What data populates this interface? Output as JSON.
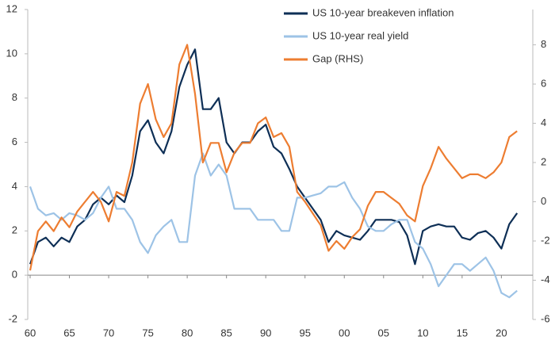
{
  "chart_data": {
    "type": "line",
    "x": [
      1960,
      1961,
      1962,
      1963,
      1964,
      1965,
      1966,
      1967,
      1968,
      1969,
      1970,
      1971,
      1972,
      1973,
      1974,
      1975,
      1976,
      1977,
      1978,
      1979,
      1980,
      1981,
      1982,
      1983,
      1984,
      1985,
      1986,
      1987,
      1988,
      1989,
      1990,
      1991,
      1992,
      1993,
      1994,
      1995,
      1996,
      1997,
      1998,
      1999,
      2000,
      2001,
      2002,
      2003,
      2004,
      2005,
      2006,
      2007,
      2008,
      2009,
      2010,
      2011,
      2012,
      2013,
      2014,
      2015,
      2016,
      2017,
      2018,
      2019,
      2020,
      2021,
      2022
    ],
    "series": [
      {
        "name": "US 10-year breakeven inflation",
        "color": "#0e2f56",
        "values": [
          0.5,
          1.5,
          1.7,
          1.3,
          1.7,
          1.5,
          2.2,
          2.5,
          3.2,
          3.5,
          3.2,
          3.6,
          3.3,
          4.5,
          6.5,
          7.0,
          6.0,
          5.5,
          6.5,
          8.5,
          9.5,
          10.2,
          7.5,
          7.5,
          8.0,
          6.0,
          5.5,
          6.0,
          6.0,
          6.5,
          6.8,
          5.8,
          5.5,
          4.8,
          4.0,
          3.5,
          3.0,
          2.5,
          1.5,
          2.0,
          1.8,
          1.7,
          1.6,
          2.0,
          2.5,
          2.5,
          2.5,
          2.4,
          1.8,
          0.5,
          2.0,
          2.2,
          2.3,
          2.2,
          2.2,
          1.7,
          1.6,
          1.9,
          2.0,
          1.7,
          1.2,
          2.3,
          2.8
        ]
      },
      {
        "name": "US 10-year real yield",
        "color": "#9dc3e6",
        "values": [
          4.0,
          3.0,
          2.7,
          2.8,
          2.5,
          2.8,
          2.7,
          2.5,
          2.8,
          3.5,
          4.0,
          3.0,
          3.0,
          2.5,
          1.5,
          1.0,
          1.8,
          2.2,
          2.5,
          1.5,
          1.5,
          4.5,
          5.5,
          4.5,
          5.0,
          4.5,
          3.0,
          3.0,
          3.0,
          2.5,
          2.5,
          2.5,
          2.0,
          2.0,
          3.5,
          3.5,
          3.6,
          3.7,
          4.0,
          4.0,
          4.2,
          3.5,
          3.0,
          2.2,
          2.0,
          2.0,
          2.3,
          2.5,
          2.5,
          1.5,
          1.2,
          0.5,
          -0.5,
          0.0,
          0.5,
          0.5,
          0.2,
          0.5,
          0.8,
          0.2,
          -0.8,
          -1.0,
          -0.7
        ]
      },
      {
        "name": "Gap (RHS)",
        "color": "#ed7d31",
        "axis": "y2",
        "values": [
          -3.5,
          -1.5,
          -1.0,
          -1.5,
          -0.8,
          -1.3,
          -0.5,
          0.0,
          0.5,
          0.0,
          -1.0,
          0.5,
          0.3,
          2.0,
          5.0,
          6.0,
          4.2,
          3.3,
          4.0,
          7.0,
          8.0,
          5.5,
          2.0,
          3.0,
          3.0,
          1.5,
          2.5,
          3.0,
          3.0,
          4.0,
          4.3,
          3.3,
          3.5,
          2.8,
          0.5,
          0.0,
          -0.6,
          -1.2,
          -2.5,
          -2.0,
          -2.4,
          -1.8,
          -1.4,
          -0.2,
          0.5,
          0.5,
          0.2,
          -0.1,
          -0.7,
          -1.0,
          0.8,
          1.7,
          2.8,
          2.2,
          1.7,
          1.2,
          1.4,
          1.4,
          1.2,
          1.5,
          2.0,
          3.3,
          3.6
        ]
      }
    ],
    "xlim": [
      1960,
      2024
    ],
    "xticks": [
      {
        "value": 1960,
        "label": "60"
      },
      {
        "value": 1965,
        "label": "65"
      },
      {
        "value": 1970,
        "label": "70"
      },
      {
        "value": 1975,
        "label": "75"
      },
      {
        "value": 1980,
        "label": "80"
      },
      {
        "value": 1985,
        "label": "85"
      },
      {
        "value": 1990,
        "label": "90"
      },
      {
        "value": 1995,
        "label": "95"
      },
      {
        "value": 2000,
        "label": "00"
      },
      {
        "value": 2005,
        "label": "05"
      },
      {
        "value": 2010,
        "label": "10"
      },
      {
        "value": 2015,
        "label": "15"
      },
      {
        "value": 2020,
        "label": "20"
      }
    ],
    "ylim": [
      -2,
      12
    ],
    "yticks": [
      -2,
      0,
      2,
      4,
      6,
      8,
      10,
      12
    ],
    "y2lim": [
      -6,
      9.8
    ],
    "y2ticks": [
      -6,
      -4,
      -2,
      0,
      2,
      4,
      6,
      8
    ],
    "legend": "top-right"
  }
}
